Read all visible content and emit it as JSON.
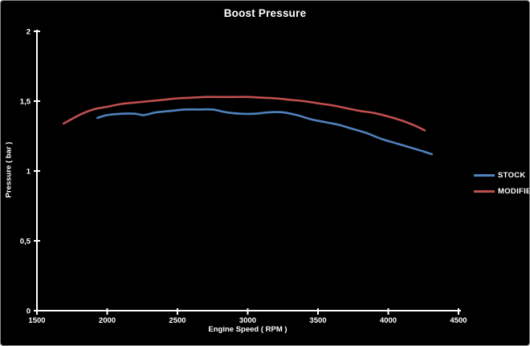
{
  "window": {
    "background": "#000000",
    "border_color": "#8a8a8a",
    "text_color": "#ffffff"
  },
  "chart_data": {
    "type": "line",
    "title": "Boost Pressure",
    "xlabel": "Engine Speed ( RPM )",
    "ylabel": "Pressure ( bar )",
    "xlim": [
      1500,
      4500
    ],
    "ylim": [
      0,
      2
    ],
    "x_ticks": [
      1500,
      2000,
      2500,
      3000,
      3500,
      4000,
      4500
    ],
    "x_tick_labels": [
      "1500",
      "2000",
      "2500",
      "3000",
      "3500",
      "4000",
      "4500"
    ],
    "y_ticks": [
      0,
      0.5,
      1,
      1.5,
      2
    ],
    "y_tick_labels": [
      "0",
      "0,5",
      "1",
      "1,5",
      "2"
    ],
    "grid": false,
    "legend_position": "right",
    "plot_background": "#000000",
    "axis_color": "#ffffff",
    "series": [
      {
        "name": "STOCK",
        "color": "#4f81bd",
        "points": [
          [
            1930,
            1.38
          ],
          [
            2000,
            1.4
          ],
          [
            2100,
            1.41
          ],
          [
            2200,
            1.41
          ],
          [
            2260,
            1.4
          ],
          [
            2350,
            1.42
          ],
          [
            2450,
            1.43
          ],
          [
            2550,
            1.44
          ],
          [
            2650,
            1.44
          ],
          [
            2750,
            1.44
          ],
          [
            2850,
            1.42
          ],
          [
            2950,
            1.41
          ],
          [
            3050,
            1.41
          ],
          [
            3150,
            1.42
          ],
          [
            3250,
            1.42
          ],
          [
            3350,
            1.4
          ],
          [
            3450,
            1.37
          ],
          [
            3550,
            1.35
          ],
          [
            3650,
            1.33
          ],
          [
            3750,
            1.3
          ],
          [
            3850,
            1.27
          ],
          [
            3950,
            1.23
          ],
          [
            4050,
            1.2
          ],
          [
            4150,
            1.17
          ],
          [
            4250,
            1.14
          ],
          [
            4310,
            1.12
          ]
        ]
      },
      {
        "name": "MODIFIED",
        "color": "#c0504d",
        "points": [
          [
            1690,
            1.34
          ],
          [
            1800,
            1.4
          ],
          [
            1900,
            1.44
          ],
          [
            2000,
            1.46
          ],
          [
            2100,
            1.48
          ],
          [
            2200,
            1.49
          ],
          [
            2300,
            1.5
          ],
          [
            2400,
            1.51
          ],
          [
            2500,
            1.52
          ],
          [
            2600,
            1.525
          ],
          [
            2700,
            1.53
          ],
          [
            2800,
            1.53
          ],
          [
            2900,
            1.53
          ],
          [
            3000,
            1.53
          ],
          [
            3100,
            1.525
          ],
          [
            3200,
            1.52
          ],
          [
            3300,
            1.51
          ],
          [
            3400,
            1.5
          ],
          [
            3500,
            1.485
          ],
          [
            3600,
            1.47
          ],
          [
            3700,
            1.45
          ],
          [
            3800,
            1.43
          ],
          [
            3900,
            1.415
          ],
          [
            4000,
            1.39
          ],
          [
            4100,
            1.36
          ],
          [
            4200,
            1.32
          ],
          [
            4260,
            1.29
          ]
        ]
      }
    ]
  }
}
